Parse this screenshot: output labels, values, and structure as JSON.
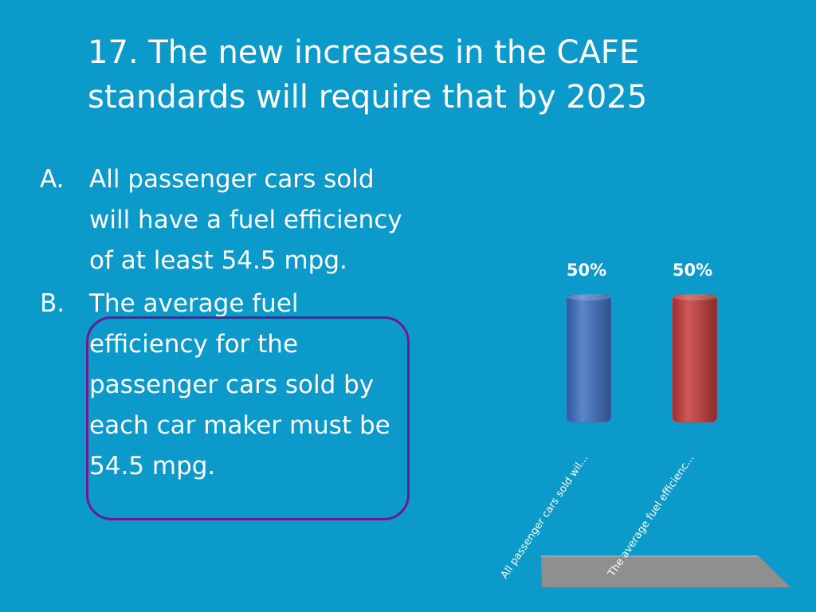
{
  "slide": {
    "title": "17.  The new increases in the CAFE standards will require that by 2025"
  },
  "options": [
    {
      "letter": "A.",
      "text": "All passenger cars sold will have a fuel efficiency of at least 54.5 mpg."
    },
    {
      "letter": "B.",
      "text": "The average fuel efficiency for the passenger cars sold by each car maker must be 54.5 mpg."
    }
  ],
  "highlighted_option": "B.",
  "chart_data": {
    "type": "bar",
    "categories": [
      "All passenger cars sold wil...",
      "The average fuel efficienc..."
    ],
    "values": [
      50,
      50
    ],
    "data_labels": [
      "50%",
      "50%"
    ],
    "ylim": [
      0,
      100
    ],
    "colors": [
      "#4a72b8",
      "#bd4646"
    ],
    "floor_color": "#8f8f8f",
    "grid": false,
    "legend": "none"
  }
}
